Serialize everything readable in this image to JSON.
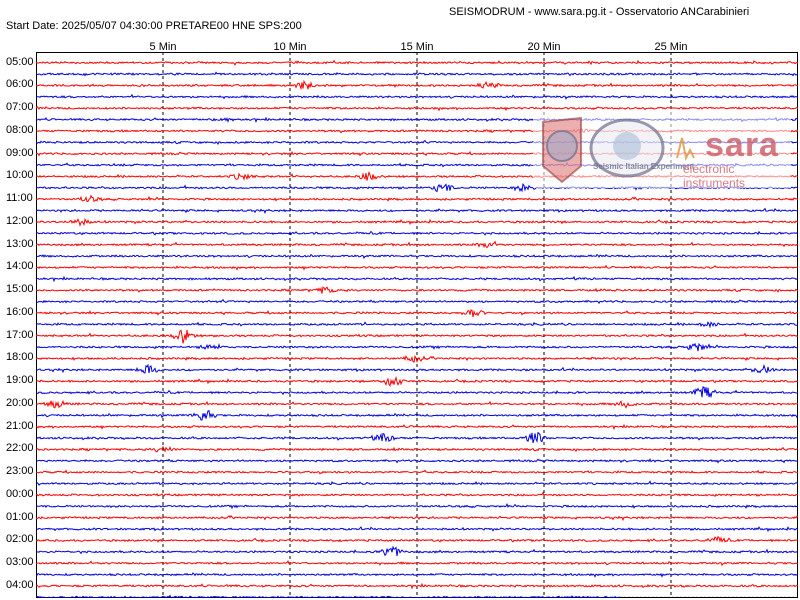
{
  "header": {
    "title": "SEISMODRUM - www.sara.pg.it - Osservatorio ANCarabinieri",
    "subtitle": "Start Date: 2025/05/07 04:30:00 PRETARE00 HNE  SPS:200"
  },
  "logo": {
    "brand": "sara",
    "brand_sub": "electronic instruments",
    "seal_text": "Seismic Italian Experiment"
  },
  "colors": {
    "trace_odd": "#ff0000",
    "trace_even": "#0000dd",
    "grid": "#000000",
    "frame": "#000000"
  },
  "chart_data": {
    "type": "line",
    "subtype": "helicorder",
    "title": "SEISMODRUM - www.sara.pg.it - Osservatorio ANCarabinieri",
    "x_ticks": [
      "5 Min",
      "10 Min",
      "15 Min",
      "20 Min",
      "25 Min"
    ],
    "x_tick_values": [
      5,
      10,
      15,
      20,
      25
    ],
    "xlim": [
      0,
      30
    ],
    "grid_x": true,
    "hour_labels": [
      "05:00",
      "06:00",
      "07:00",
      "08:00",
      "09:00",
      "10:00",
      "11:00",
      "12:00",
      "13:00",
      "14:00",
      "15:00",
      "16:00",
      "17:00",
      "18:00",
      "19:00",
      "20:00",
      "21:00",
      "22:00",
      "23:00",
      "00:00",
      "01:00",
      "02:00",
      "03:00",
      "04:00"
    ],
    "rows_per_hour": 2,
    "total_rows": 48,
    "last_row_end_min": 23,
    "events": [
      {
        "row": 2,
        "min": 10.6,
        "amp": 4
      },
      {
        "row": 2,
        "min": 17.8,
        "amp": 3
      },
      {
        "row": 5,
        "min": 7.4,
        "amp": 2
      },
      {
        "row": 6,
        "min": 21.5,
        "amp": 2
      },
      {
        "row": 10,
        "min": 8.1,
        "amp": 3
      },
      {
        "row": 10,
        "min": 13.1,
        "amp": 4
      },
      {
        "row": 11,
        "min": 16.0,
        "amp": 5
      },
      {
        "row": 11,
        "min": 19.2,
        "amp": 3
      },
      {
        "row": 12,
        "min": 2.1,
        "amp": 3
      },
      {
        "row": 14,
        "min": 1.7,
        "amp": 3
      },
      {
        "row": 16,
        "min": 17.8,
        "amp": 3
      },
      {
        "row": 20,
        "min": 11.4,
        "amp": 3
      },
      {
        "row": 22,
        "min": 17.2,
        "amp": 4
      },
      {
        "row": 23,
        "min": 26.5,
        "amp": 2
      },
      {
        "row": 24,
        "min": 5.8,
        "amp": 7
      },
      {
        "row": 25,
        "min": 6.9,
        "amp": 3
      },
      {
        "row": 25,
        "min": 26.0,
        "amp": 4
      },
      {
        "row": 26,
        "min": 14.9,
        "amp": 3
      },
      {
        "row": 27,
        "min": 4.4,
        "amp": 5
      },
      {
        "row": 27,
        "min": 28.6,
        "amp": 4
      },
      {
        "row": 28,
        "min": 14.0,
        "amp": 6
      },
      {
        "row": 29,
        "min": 26.3,
        "amp": 6
      },
      {
        "row": 30,
        "min": 0.8,
        "amp": 4
      },
      {
        "row": 30,
        "min": 23.2,
        "amp": 3
      },
      {
        "row": 31,
        "min": 6.6,
        "amp": 6
      },
      {
        "row": 33,
        "min": 13.7,
        "amp": 4
      },
      {
        "row": 33,
        "min": 19.6,
        "amp": 7
      },
      {
        "row": 34,
        "min": 5.0,
        "amp": 3
      },
      {
        "row": 42,
        "min": 26.8,
        "amp": 3
      },
      {
        "row": 43,
        "min": 14.0,
        "amp": 6
      }
    ]
  }
}
